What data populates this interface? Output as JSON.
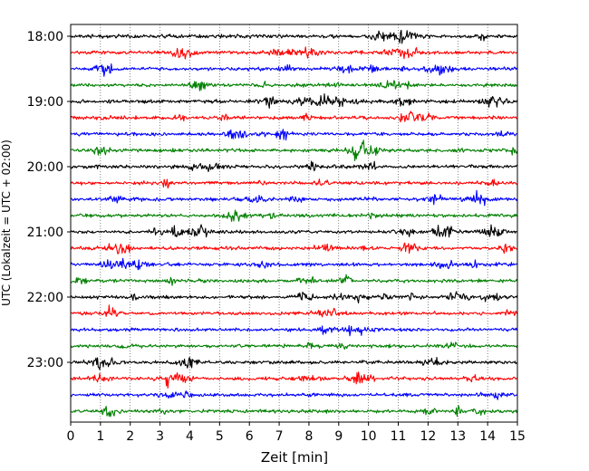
{
  "chart_data": {
    "type": "line",
    "title": "",
    "xlabel": "Zeit  [min]",
    "ylabel": "UTC (Lokalzeit = UTC + 02:00)",
    "xlim": [
      0,
      15
    ],
    "x_ticks": [
      "0",
      "1",
      "2",
      "3",
      "4",
      "5",
      "6",
      "7",
      "8",
      "9",
      "10",
      "11",
      "12",
      "13",
      "14",
      "15"
    ],
    "y_tick_labels": [
      "18:00",
      "19:00",
      "20:00",
      "21:00",
      "22:00",
      "23:00"
    ],
    "grid": "vertical dotted",
    "trace_colors": [
      "#000000",
      "#ff0000",
      "#0000ff",
      "#008000"
    ],
    "traces": [
      {
        "start": "18:00",
        "color": "#000000"
      },
      {
        "start": "18:15",
        "color": "#ff0000"
      },
      {
        "start": "18:30",
        "color": "#0000ff"
      },
      {
        "start": "18:45",
        "color": "#008000"
      },
      {
        "start": "19:00",
        "color": "#000000"
      },
      {
        "start": "19:15",
        "color": "#ff0000"
      },
      {
        "start": "19:30",
        "color": "#0000ff"
      },
      {
        "start": "19:45",
        "color": "#008000"
      },
      {
        "start": "20:00",
        "color": "#000000"
      },
      {
        "start": "20:15",
        "color": "#ff0000"
      },
      {
        "start": "20:30",
        "color": "#0000ff"
      },
      {
        "start": "20:45",
        "color": "#008000"
      },
      {
        "start": "21:00",
        "color": "#000000"
      },
      {
        "start": "21:15",
        "color": "#ff0000"
      },
      {
        "start": "21:30",
        "color": "#0000ff"
      },
      {
        "start": "21:45",
        "color": "#008000"
      },
      {
        "start": "22:00",
        "color": "#000000"
      },
      {
        "start": "22:15",
        "color": "#ff0000"
      },
      {
        "start": "22:30",
        "color": "#0000ff"
      },
      {
        "start": "22:45",
        "color": "#008000"
      },
      {
        "start": "23:00",
        "color": "#000000"
      },
      {
        "start": "23:15",
        "color": "#ff0000"
      },
      {
        "start": "23:30",
        "color": "#0000ff"
      },
      {
        "start": "23:45",
        "color": "#008000"
      }
    ]
  }
}
